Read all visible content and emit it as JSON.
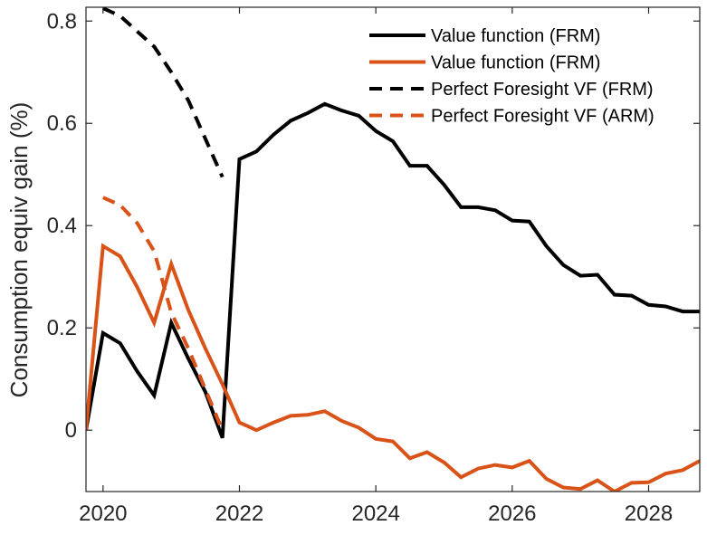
{
  "chart_data": {
    "type": "line",
    "title": "",
    "xlabel": "",
    "ylabel": "Consumption equiv gain (%)",
    "xlim": [
      2019.75,
      2028.75
    ],
    "ylim": [
      -0.12,
      0.827
    ],
    "xticks": [
      2020,
      2022,
      2024,
      2026,
      2028
    ],
    "xtick_labels": [
      "2020",
      "2022",
      "2024",
      "2026",
      "2028"
    ],
    "yticks": [
      0,
      0.2,
      0.4,
      0.6,
      0.8
    ],
    "ytick_labels": [
      "0",
      "0.2",
      "0.4",
      "0.6",
      "0.8"
    ],
    "grid": false,
    "legend_position": "top-right",
    "series": [
      {
        "name": "Value function (FRM)",
        "color": "#000000",
        "style": "solid",
        "x": [
          2019.75,
          2020,
          2020.25,
          2020.5,
          2020.75,
          2021,
          2021.25,
          2021.5,
          2021.75,
          2022,
          2022.25,
          2022.5,
          2022.75,
          2023,
          2023.25,
          2023.5,
          2023.75,
          2024,
          2024.25,
          2024.5,
          2024.75,
          2025,
          2025.25,
          2025.5,
          2025.75,
          2026,
          2026.25,
          2026.5,
          2026.75,
          2027,
          2027.25,
          2027.5,
          2027.75,
          2028,
          2028.25,
          2028.5,
          2028.75
        ],
        "y": [
          0,
          0.19,
          0.17,
          0.115,
          0.068,
          0.21,
          0.14,
          0.075,
          -0.015,
          0.53,
          0.545,
          0.578,
          0.605,
          0.62,
          0.638,
          0.625,
          0.615,
          0.585,
          0.565,
          0.517,
          0.517,
          0.48,
          0.436,
          0.436,
          0.43,
          0.41,
          0.408,
          0.36,
          0.323,
          0.302,
          0.304,
          0.265,
          0.263,
          0.245,
          0.242,
          0.232,
          0.232
        ]
      },
      {
        "name": "Value function (FRM)",
        "color": "#D95319",
        "style": "solid",
        "x": [
          2019.75,
          2020,
          2020.25,
          2020.5,
          2020.75,
          2021,
          2021.25,
          2021.5,
          2021.75,
          2022,
          2022.25,
          2022.5,
          2022.75,
          2023,
          2023.25,
          2023.5,
          2023.75,
          2024,
          2024.25,
          2024.5,
          2024.75,
          2025,
          2025.25,
          2025.5,
          2025.75,
          2026,
          2026.25,
          2026.5,
          2026.75,
          2027,
          2027.25,
          2027.5,
          2027.75,
          2028,
          2028.25,
          2028.5,
          2028.75
        ],
        "y": [
          0,
          0.36,
          0.34,
          0.28,
          0.21,
          0.325,
          0.235,
          0.16,
          0.09,
          0.015,
          0.0,
          0.015,
          0.028,
          0.03,
          0.037,
          0.018,
          0.005,
          -0.017,
          -0.022,
          -0.055,
          -0.043,
          -0.063,
          -0.092,
          -0.075,
          -0.068,
          -0.073,
          -0.06,
          -0.095,
          -0.112,
          -0.115,
          -0.098,
          -0.12,
          -0.103,
          -0.102,
          -0.085,
          -0.078,
          -0.06
        ]
      },
      {
        "name": "Perfect Foresight VF (FRM)",
        "color": "#000000",
        "style": "dashed",
        "x": [
          2020,
          2020.25,
          2020.5,
          2020.75,
          2021,
          2021.25,
          2021.5,
          2021.75
        ],
        "y": [
          0.825,
          0.81,
          0.78,
          0.75,
          0.7,
          0.645,
          0.57,
          0.495
        ]
      },
      {
        "name": "Perfect Foresight VF (ARM)",
        "color": "#D95319",
        "style": "dashed",
        "x": [
          2020,
          2020.25,
          2020.5,
          2020.75,
          2021,
          2021.25,
          2021.5,
          2021.75
        ],
        "y": [
          0.455,
          0.44,
          0.405,
          0.35,
          0.23,
          0.16,
          0.08,
          0.0
        ]
      }
    ]
  }
}
